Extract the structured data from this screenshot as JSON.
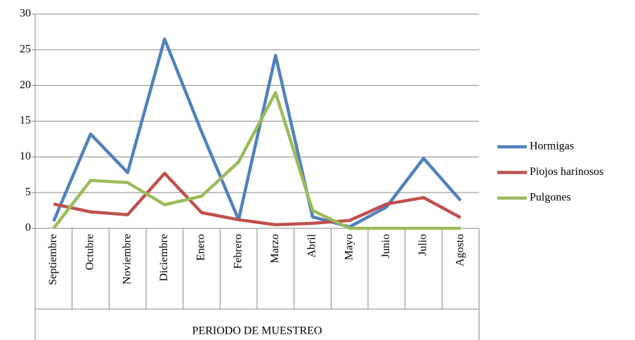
{
  "chart_data": {
    "type": "line",
    "x_label": "PERIODO DE MUESTREO",
    "categories": [
      "Septiembre",
      "Octubre",
      "Noviembre",
      "Diciembre",
      "Enero",
      "Febrero",
      "Marzo",
      "Abril",
      "Mayo",
      "Junio",
      "Julio",
      "Agosto"
    ],
    "series": [
      {
        "name": "Hormigas",
        "color": "#4f81bd",
        "values": [
          1,
          13.2,
          7.8,
          26.5,
          13.5,
          1.2,
          24.2,
          1.6,
          0.2,
          3,
          9.8,
          3.9
        ]
      },
      {
        "name": "Piojos harinosos",
        "color": "#c0504d",
        "values": [
          3.4,
          2.3,
          1.9,
          7.7,
          2.2,
          1.2,
          0.5,
          0.7,
          1.1,
          3.4,
          4.3,
          1.5
        ]
      },
      {
        "name": "Pulgones",
        "color": "#9bbb59",
        "values": [
          0,
          6.7,
          6.4,
          3.3,
          4.5,
          9.3,
          19,
          2.5,
          0,
          0,
          0,
          0
        ]
      }
    ],
    "ylim": [
      0,
      30
    ],
    "yticks": [
      0,
      5,
      10,
      15,
      20,
      25,
      30
    ],
    "grid": true,
    "legend": "right"
  }
}
